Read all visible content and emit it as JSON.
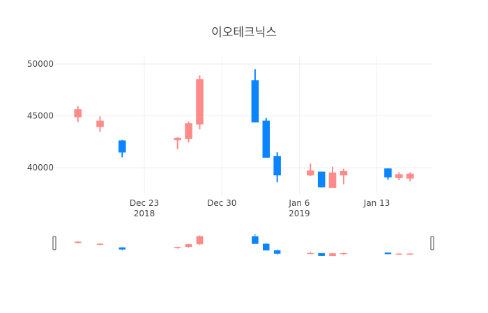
{
  "chart_data": {
    "type": "candlestick",
    "title": "이오테크닉스",
    "xlabel": "",
    "ylabel": "",
    "ylim": [
      37400,
      50800
    ],
    "xlim": [
      "2018-12-15",
      "2019-01-18"
    ],
    "yticks": [
      40000,
      45000,
      50000
    ],
    "xticks": [
      {
        "date": "2018-12-23",
        "label": "Dec 23",
        "sublabel": "2018"
      },
      {
        "date": "2018-12-30",
        "label": "Dec 30",
        "sublabel": ""
      },
      {
        "date": "2019-01-06",
        "label": "Jan 6",
        "sublabel": "2019"
      },
      {
        "date": "2019-01-13",
        "label": "Jan 13",
        "sublabel": ""
      }
    ],
    "grid": true,
    "legend": "none",
    "range_slider": true,
    "colors": {
      "increasing": "#ff8a8a",
      "decreasing": "#0a84ff"
    },
    "candles": [
      {
        "date": "2018-12-17",
        "open": 44900,
        "high": 45950,
        "low": 44400,
        "close": 45600
      },
      {
        "date": "2018-12-19",
        "open": 43950,
        "high": 44950,
        "low": 43450,
        "close": 44500
      },
      {
        "date": "2018-12-21",
        "open": 42600,
        "high": 42700,
        "low": 41000,
        "close": 41500
      },
      {
        "date": "2018-12-26",
        "open": 42700,
        "high": 42950,
        "low": 41800,
        "close": 42850
      },
      {
        "date": "2018-12-27",
        "open": 42800,
        "high": 44450,
        "low": 42450,
        "close": 44250
      },
      {
        "date": "2018-12-28",
        "open": 44200,
        "high": 48900,
        "low": 43700,
        "close": 48500
      },
      {
        "date": "2019-01-02",
        "open": 48400,
        "high": 49500,
        "low": 44400,
        "close": 44400
      },
      {
        "date": "2019-01-03",
        "open": 44500,
        "high": 44800,
        "low": 41000,
        "close": 41000
      },
      {
        "date": "2019-01-04",
        "open": 41100,
        "high": 41500,
        "low": 38600,
        "close": 39300
      },
      {
        "date": "2019-01-07",
        "open": 39300,
        "high": 40400,
        "low": 39200,
        "close": 39700
      },
      {
        "date": "2019-01-08",
        "open": 39600,
        "high": 39600,
        "low": 38100,
        "close": 38150
      },
      {
        "date": "2019-01-09",
        "open": 38100,
        "high": 40100,
        "low": 38100,
        "close": 39500
      },
      {
        "date": "2019-01-10",
        "open": 39300,
        "high": 39900,
        "low": 38400,
        "close": 39650
      },
      {
        "date": "2019-01-14",
        "open": 39900,
        "high": 39950,
        "low": 38850,
        "close": 39100
      },
      {
        "date": "2019-01-15",
        "open": 39050,
        "high": 39550,
        "low": 38800,
        "close": 39350
      },
      {
        "date": "2019-01-16",
        "open": 39000,
        "high": 39550,
        "low": 38700,
        "close": 39400
      }
    ]
  }
}
